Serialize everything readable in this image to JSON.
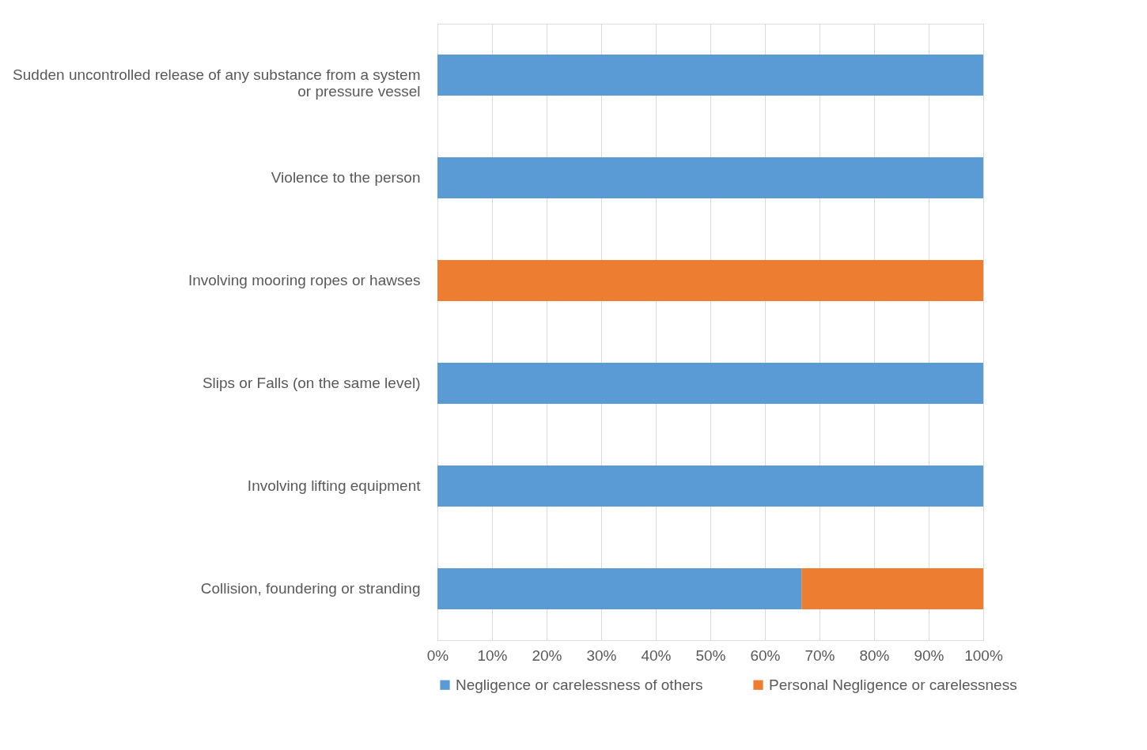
{
  "chart_data": {
    "type": "bar",
    "orientation": "horizontal",
    "stacked": true,
    "categories": [
      "Sudden uncontrolled release of any substance from a system or pressure vessel",
      "Violence to the person",
      "Involving mooring ropes or hawses",
      "Slips or Falls (on the same level)",
      "Involving lifting equipment",
      "Collision, foundering or stranding"
    ],
    "series": [
      {
        "name": "Negligence or carelessness of others",
        "color": "#5b9bd5",
        "values": [
          100,
          100,
          0,
          100,
          100,
          66.7
        ]
      },
      {
        "name": "Personal Negligence or carelessness",
        "color": "#ed7d31",
        "values": [
          0,
          0,
          100,
          0,
          0,
          33.3
        ]
      }
    ],
    "xlim": [
      0,
      100
    ],
    "xticks": [
      {
        "value": 0,
        "label": "0%"
      },
      {
        "value": 10,
        "label": "10%"
      },
      {
        "value": 20,
        "label": "20%"
      },
      {
        "value": 30,
        "label": "30%"
      },
      {
        "value": 40,
        "label": "40%"
      },
      {
        "value": 50,
        "label": "50%"
      },
      {
        "value": 60,
        "label": "60%"
      },
      {
        "value": 70,
        "label": "70%"
      },
      {
        "value": 80,
        "label": "80%"
      },
      {
        "value": 90,
        "label": "90%"
      },
      {
        "value": 100,
        "label": "100%"
      }
    ],
    "grid": "x",
    "legend": "bottom"
  }
}
